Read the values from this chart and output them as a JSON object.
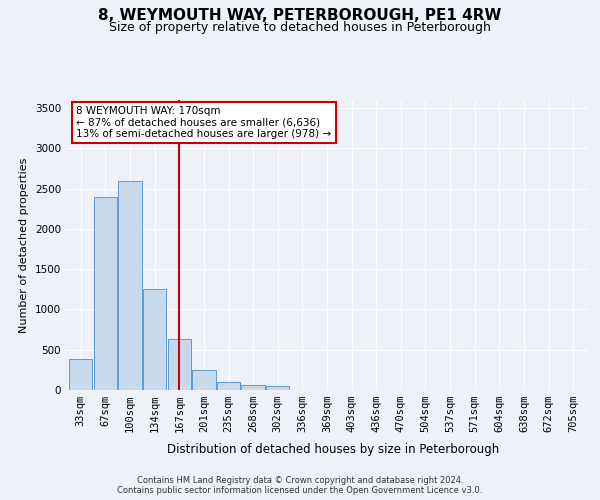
{
  "title": "8, WEYMOUTH WAY, PETERBOROUGH, PE1 4RW",
  "subtitle": "Size of property relative to detached houses in Peterborough",
  "xlabel": "Distribution of detached houses by size in Peterborough",
  "ylabel": "Number of detached properties",
  "footer_line1": "Contains HM Land Registry data © Crown copyright and database right 2024.",
  "footer_line2": "Contains public sector information licensed under the Open Government Licence v3.0.",
  "annotation_title": "8 WEYMOUTH WAY: 170sqm",
  "annotation_line1": "← 87% of detached houses are smaller (6,636)",
  "annotation_line2": "13% of semi-detached houses are larger (978) →",
  "bar_color": "#c9d9ec",
  "bar_edge_color": "#5b9bd5",
  "vline_color": "#cc0000",
  "annotation_box_edge_color": "#cc0000",
  "background_color": "#eef2f8",
  "plot_bg_color": "#eef2f8",
  "categories": [
    "33sqm",
    "67sqm",
    "100sqm",
    "134sqm",
    "167sqm",
    "201sqm",
    "235sqm",
    "268sqm",
    "302sqm",
    "336sqm",
    "369sqm",
    "403sqm",
    "436sqm",
    "470sqm",
    "504sqm",
    "537sqm",
    "571sqm",
    "604sqm",
    "638sqm",
    "672sqm",
    "705sqm"
  ],
  "bar_values": [
    390,
    2400,
    2600,
    1250,
    630,
    250,
    100,
    60,
    50,
    0,
    0,
    0,
    0,
    0,
    0,
    0,
    0,
    0,
    0,
    0,
    0
  ],
  "ylim": [
    0,
    3600
  ],
  "yticks": [
    0,
    500,
    1000,
    1500,
    2000,
    2500,
    3000,
    3500
  ],
  "grid_color": "#ffffff",
  "title_fontsize": 11,
  "subtitle_fontsize": 9,
  "tick_fontsize": 7.5,
  "ylabel_fontsize": 8,
  "xlabel_fontsize": 8.5,
  "footer_fontsize": 6,
  "annotation_fontsize": 7.5,
  "vline_x_index": 4
}
